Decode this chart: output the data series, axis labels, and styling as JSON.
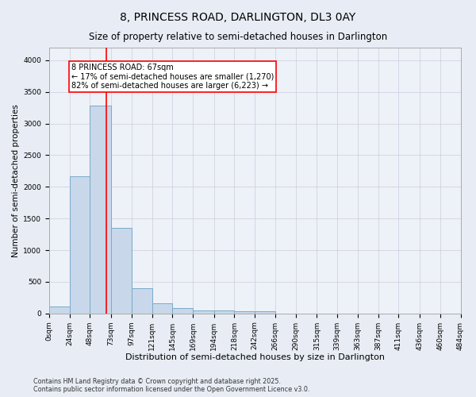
{
  "title1": "8, PRINCESS ROAD, DARLINGTON, DL3 0AY",
  "title2": "Size of property relative to semi-detached houses in Darlington",
  "xlabel": "Distribution of semi-detached houses by size in Darlington",
  "ylabel": "Number of semi-detached properties",
  "bin_edges": [
    0,
    24,
    48,
    73,
    97,
    121,
    145,
    169,
    194,
    218,
    242,
    266,
    290,
    315,
    339,
    363,
    387,
    411,
    436,
    460,
    484
  ],
  "bar_heights": [
    110,
    2170,
    3290,
    1350,
    400,
    155,
    90,
    45,
    45,
    30,
    30,
    0,
    0,
    0,
    0,
    0,
    0,
    0,
    0,
    0
  ],
  "bar_color": "#c8d8ea",
  "bar_edge_color": "#7aaac8",
  "bar_linewidth": 0.7,
  "vline_x": 67,
  "vline_color": "red",
  "vline_linewidth": 1.2,
  "annotation_line1": "8 PRINCESS ROAD: 67sqm",
  "annotation_line2": "← 17% of semi-detached houses are smaller (1,270)",
  "annotation_line3": "82% of semi-detached houses are larger (6,223) →",
  "annotation_box_color": "white",
  "annotation_edge_color": "red",
  "annotation_fontsize": 7,
  "ylim": [
    0,
    4200
  ],
  "yticks": [
    0,
    500,
    1000,
    1500,
    2000,
    2500,
    3000,
    3500,
    4000
  ],
  "grid_color": "#ccccdd",
  "background_color": "#e8edf5",
  "plot_bg_color": "#edf1f8",
  "footnote1": "Contains HM Land Registry data © Crown copyright and database right 2025.",
  "footnote2": "Contains public sector information licensed under the Open Government Licence v3.0.",
  "title1_fontsize": 10,
  "title2_fontsize": 8.5,
  "xlabel_fontsize": 8,
  "ylabel_fontsize": 7.5,
  "tick_fontsize": 6.5
}
